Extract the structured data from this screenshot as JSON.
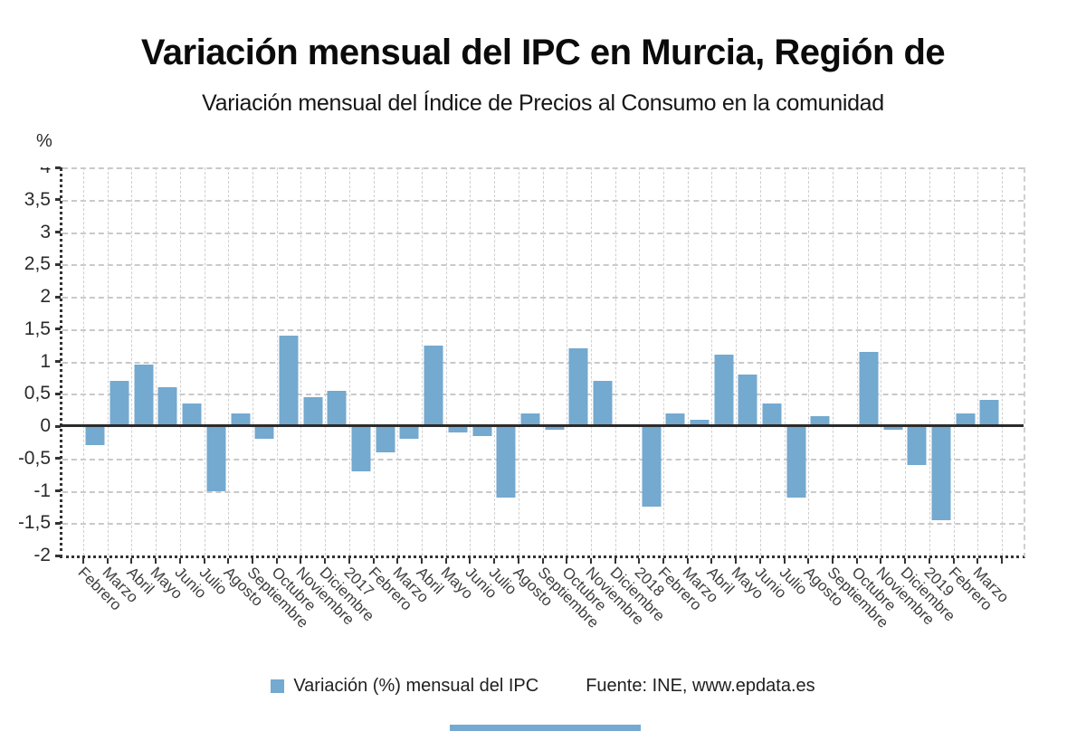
{
  "header": {
    "title": "Variación mensual del IPC en Murcia, Región de",
    "subtitle": "Variación mensual del Índice de Precios al Consumo en la comunidad"
  },
  "legend": {
    "series_label": "Variación (%) mensual del IPC",
    "swatch_color": "#74a9d0"
  },
  "source_label": "Fuente: INE, www.epdata.es",
  "chart_data": {
    "type": "bar",
    "title": "Variación mensual del IPC en Murcia, Región de",
    "subtitle": "Variación mensual del Índice de Precios al Consumo en la comunidad",
    "unit_label": "%",
    "ylabel": "%",
    "xlabel": "",
    "ylim": [
      -2,
      4
    ],
    "ytick_values": [
      4,
      3.5,
      3,
      2.5,
      2,
      1.5,
      1,
      0.5,
      0,
      -0.5,
      -1,
      -1.5,
      -2
    ],
    "ytick_labels": [
      "4",
      "3,5",
      "3",
      "2,5",
      "2",
      "1,5",
      "1",
      "0,5",
      "0",
      "-0,5",
      "-1",
      "-1,5",
      "-2"
    ],
    "grid": true,
    "legend_position": "bottom",
    "bar_color": "#74a9d0",
    "series_name": "Variación (%) mensual del IPC",
    "categories": [
      "Febrero",
      "Marzo",
      "Abril",
      "Mayo",
      "Junio",
      "Julio",
      "Agosto",
      "Septiembre",
      "Octubre",
      "Noviembre",
      "Diciembre",
      "2017",
      "Febrero",
      "Marzo",
      "Abril",
      "Mayo",
      "Junio",
      "Julio",
      "Agosto",
      "Septiembre",
      "Octubre",
      "Noviembre",
      "Diciembre",
      "2018",
      "Febrero",
      "Marzo",
      "Abril",
      "Mayo",
      "Junio",
      "Julio",
      "Agosto",
      "Septiembre",
      "Octubre",
      "Noviembre",
      "Diciembre",
      "2019",
      "Febrero",
      "Marzo"
    ],
    "values": [
      -0.3,
      0.7,
      0.95,
      0.6,
      0.35,
      -1.0,
      0.2,
      -0.2,
      1.4,
      0.45,
      0.55,
      -0.7,
      -0.4,
      -0.2,
      1.25,
      -0.1,
      -0.15,
      -1.1,
      0.2,
      -0.05,
      1.2,
      0.7,
      0.0,
      -1.25,
      0.2,
      0.1,
      1.1,
      0.8,
      0.35,
      -1.1,
      0.15,
      0.0,
      1.15,
      -0.05,
      -0.6,
      -1.45,
      0.2,
      0.4
    ]
  }
}
